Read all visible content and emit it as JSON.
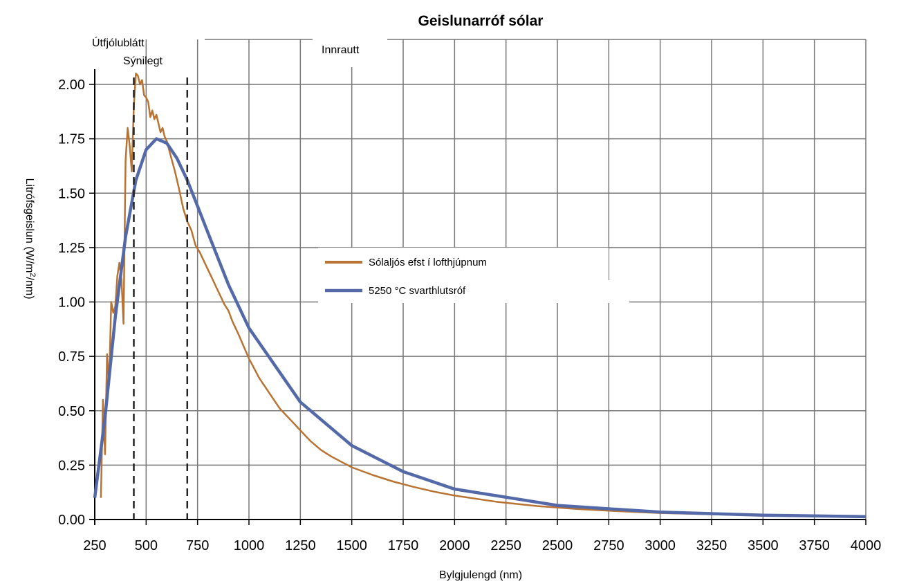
{
  "chart_data": {
    "type": "line",
    "title": "Geislunarróf sólar",
    "xlabel": "Bylgjulengd (nm)",
    "ylabel_prefix": "Litrófsgeislun (W/m",
    "ylabel_sup": "2",
    "ylabel_suffix": "/nm)",
    "xlim": [
      250,
      4000
    ],
    "ylim": [
      0,
      2.07
    ],
    "grid": true,
    "x_ticks": [
      250,
      500,
      750,
      1000,
      1250,
      1500,
      1750,
      2000,
      2250,
      2500,
      2750,
      3000,
      3250,
      3500,
      3750,
      4000
    ],
    "y_ticks": [
      "0.00",
      "0.25",
      "0.50",
      "0.75",
      "1.00",
      "1.25",
      "1.50",
      "1.75",
      "2.00"
    ],
    "regions": [
      {
        "label": "Útfjólublátt"
      },
      {
        "label": "Sýnilegt"
      },
      {
        "label": "Innrautt"
      }
    ],
    "boundaries": [
      440,
      700
    ],
    "legend_position": "center",
    "series": [
      {
        "name": "Sólaljós efst í lofthjúpnum",
        "color": "#b87333",
        "x": [
          280,
          290,
          300,
          310,
          320,
          330,
          340,
          350,
          360,
          370,
          380,
          390,
          400,
          410,
          420,
          430,
          440,
          450,
          460,
          470,
          480,
          490,
          500,
          510,
          520,
          530,
          540,
          550,
          560,
          570,
          580,
          590,
          600,
          620,
          640,
          660,
          680,
          700,
          720,
          740,
          760,
          780,
          800,
          820,
          840,
          860,
          880,
          900,
          920,
          950,
          1000,
          1050,
          1100,
          1150,
          1200,
          1250,
          1300,
          1350,
          1400,
          1450,
          1500,
          1600,
          1700,
          1800,
          1900,
          2000,
          2200,
          2400,
          2600,
          2800,
          3000,
          3500,
          4000
        ],
        "values": [
          0.1,
          0.55,
          0.3,
          0.76,
          0.62,
          1.0,
          0.95,
          0.98,
          1.12,
          1.18,
          1.1,
          0.9,
          1.65,
          1.8,
          1.72,
          1.6,
          1.9,
          2.05,
          2.04,
          2.0,
          2.02,
          1.95,
          1.94,
          1.92,
          1.85,
          1.88,
          1.84,
          1.86,
          1.82,
          1.78,
          1.8,
          1.76,
          1.74,
          1.67,
          1.6,
          1.52,
          1.43,
          1.37,
          1.33,
          1.26,
          1.23,
          1.19,
          1.15,
          1.11,
          1.07,
          1.03,
          0.99,
          0.96,
          0.91,
          0.85,
          0.74,
          0.65,
          0.58,
          0.51,
          0.46,
          0.41,
          0.36,
          0.32,
          0.29,
          0.265,
          0.24,
          0.205,
          0.175,
          0.15,
          0.128,
          0.11,
          0.082,
          0.062,
          0.048,
          0.038,
          0.03,
          0.018,
          0.012
        ]
      },
      {
        "name": "5250 °C svarthlutsróf",
        "color": "#5469a8",
        "temperature_c": 5250,
        "x": [
          250,
          300,
          350,
          400,
          450,
          500,
          550,
          600,
          650,
          700,
          750,
          800,
          900,
          1000,
          1250,
          1500,
          1750,
          2000,
          2500,
          3000,
          3500,
          4000
        ],
        "values": [
          0.1,
          0.47,
          0.93,
          1.3,
          1.56,
          1.7,
          1.75,
          1.73,
          1.66,
          1.56,
          1.44,
          1.32,
          1.08,
          0.88,
          0.54,
          0.34,
          0.22,
          0.14,
          0.065,
          0.034,
          0.02,
          0.013
        ]
      }
    ]
  }
}
